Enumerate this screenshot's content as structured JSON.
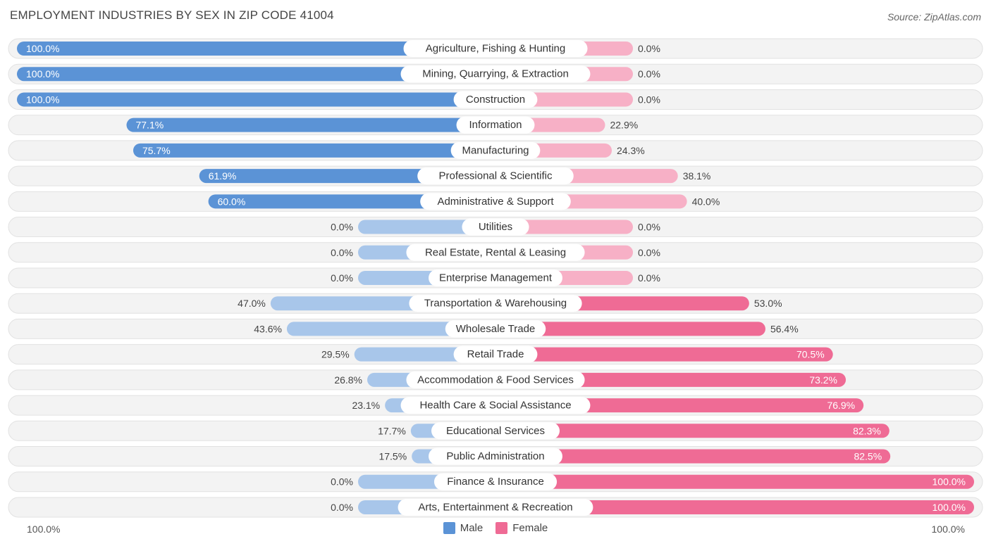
{
  "header": {
    "title": "EMPLOYMENT INDUSTRIES BY SEX IN ZIP CODE 41004",
    "source": "Source: ZipAtlas.com"
  },
  "colors": {
    "male_strong": "#5b93d6",
    "male_light": "#a8c6ea",
    "female_strong": "#ef6b95",
    "female_light": "#f7b0c6",
    "track": "#efefef"
  },
  "legend": {
    "male": "Male",
    "female": "Female"
  },
  "axis": {
    "left": "100.0%",
    "right": "100.0%"
  },
  "chart_data": {
    "type": "bar",
    "orientation": "horizontal-diverging",
    "title": "EMPLOYMENT INDUSTRIES BY SEX IN ZIP CODE 41004",
    "xlim": [
      -100,
      100
    ],
    "categories": [
      "Agriculture, Fishing & Hunting",
      "Mining, Quarrying, & Extraction",
      "Construction",
      "Information",
      "Manufacturing",
      "Professional & Scientific",
      "Administrative & Support",
      "Utilities",
      "Real Estate, Rental & Leasing",
      "Enterprise Management",
      "Transportation & Warehousing",
      "Wholesale Trade",
      "Retail Trade",
      "Accommodation & Food Services",
      "Health Care & Social Assistance",
      "Educational Services",
      "Public Administration",
      "Finance & Insurance",
      "Arts, Entertainment & Recreation"
    ],
    "series": [
      {
        "name": "Male",
        "values": [
          100.0,
          100.0,
          100.0,
          77.1,
          75.7,
          61.9,
          60.0,
          0.0,
          0.0,
          0.0,
          47.0,
          43.6,
          29.5,
          26.8,
          23.1,
          17.7,
          17.5,
          0.0,
          0.0
        ],
        "labels": [
          "100.0%",
          "100.0%",
          "100.0%",
          "77.1%",
          "75.7%",
          "61.9%",
          "60.0%",
          "0.0%",
          "0.0%",
          "0.0%",
          "47.0%",
          "43.6%",
          "29.5%",
          "26.8%",
          "23.1%",
          "17.7%",
          "17.5%",
          "0.0%",
          "0.0%"
        ]
      },
      {
        "name": "Female",
        "values": [
          0.0,
          0.0,
          0.0,
          22.9,
          24.3,
          38.1,
          40.0,
          0.0,
          0.0,
          0.0,
          53.0,
          56.4,
          70.5,
          73.2,
          76.9,
          82.3,
          82.5,
          100.0,
          100.0
        ],
        "labels": [
          "0.0%",
          "0.0%",
          "0.0%",
          "22.9%",
          "24.3%",
          "38.1%",
          "40.0%",
          "0.0%",
          "0.0%",
          "0.0%",
          "53.0%",
          "56.4%",
          "70.5%",
          "73.2%",
          "76.9%",
          "82.3%",
          "82.5%",
          "100.0%",
          "100.0%"
        ]
      }
    ]
  }
}
